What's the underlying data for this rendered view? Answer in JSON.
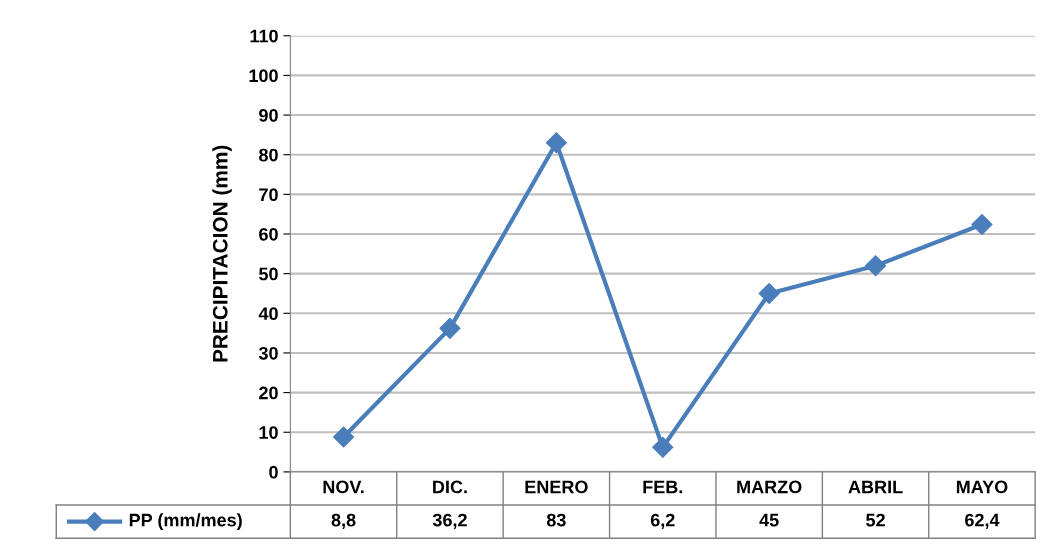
{
  "chart_data": {
    "type": "line",
    "ylabel": "PRECIPITACION (mm)",
    "categories": [
      "NOV.",
      "DIC.",
      "ENERO",
      "FEB.",
      "MARZO",
      "ABRIL",
      "MAYO"
    ],
    "series": [
      {
        "name": "PP (mm/mes)",
        "color": "#4a7ebb",
        "values": [
          8.8,
          36.2,
          83,
          6.2,
          45,
          52,
          62.4
        ],
        "value_labels": [
          "8,8",
          "36,2",
          "83",
          "6,2",
          "45",
          "52",
          "62,4"
        ]
      }
    ],
    "ylim": [
      0,
      110
    ],
    "yticks": [
      0,
      10,
      20,
      30,
      40,
      50,
      60,
      70,
      80,
      90,
      100,
      110
    ],
    "grid": "y",
    "legend": "bottom",
    "marker": "diamond",
    "line_style": "solid"
  }
}
